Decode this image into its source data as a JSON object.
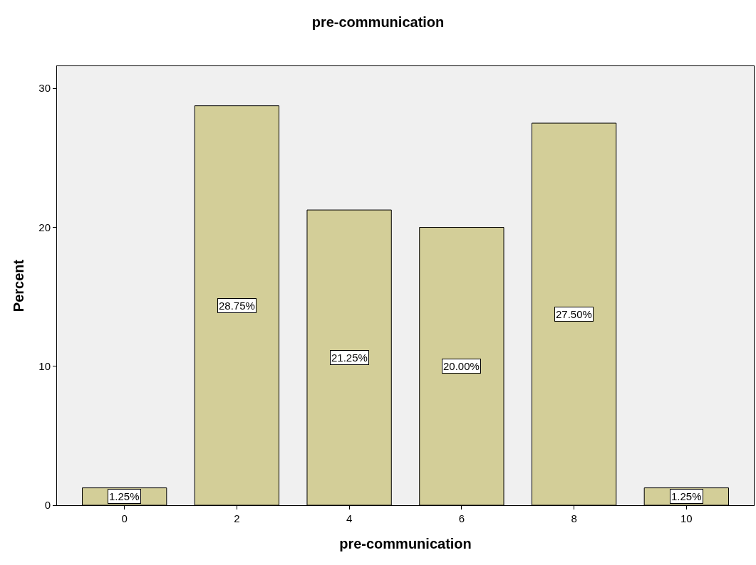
{
  "chart_data": {
    "type": "bar",
    "title": "pre-communication",
    "xlabel": "pre-communication",
    "ylabel": "Percent",
    "categories": [
      "0",
      "2",
      "4",
      "6",
      "8",
      "10"
    ],
    "values": [
      1.25,
      28.75,
      21.25,
      20.0,
      27.5,
      1.25
    ],
    "value_labels": [
      "1.25%",
      "28.75%",
      "21.25%",
      "20.00%",
      "27.50%",
      "1.25%"
    ],
    "color": "#d3ce98",
    "ylim": [
      0,
      31.6
    ],
    "yticks": [
      0,
      10,
      20,
      30
    ],
    "grid": false,
    "legend": false
  }
}
